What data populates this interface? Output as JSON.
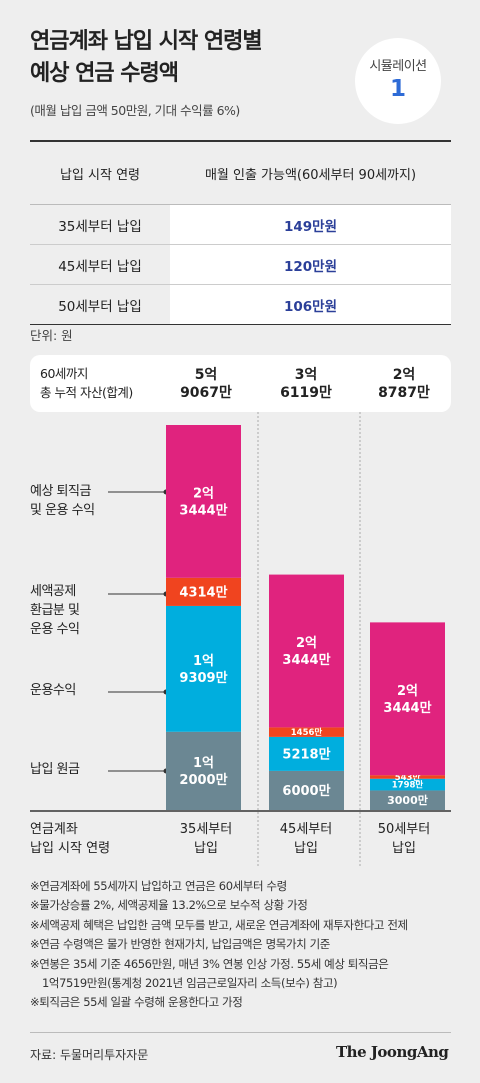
{
  "header": {
    "title_line1": "연금계좌 납입 시작 연령별",
    "title_line2": "예상 연금 수령액",
    "subtitle": "(매월 납입 금액 50만원, 기대 수익률 6%)",
    "badge_label": "시뮬레이션",
    "badge_number": "1"
  },
  "table": {
    "head_col1": "납입 시작 연령",
    "head_col2": "매월 인출 가능액(60세부터 90세까지)",
    "rows": [
      {
        "age": "35세부터 납입",
        "amount": "149만원"
      },
      {
        "age": "45세부터 납입",
        "amount": "120만원"
      },
      {
        "age": "50세부터 납입",
        "amount": "106만원"
      }
    ]
  },
  "unit_label": "단위: 원",
  "totals": {
    "label_line1": "60세까지",
    "label_line2": "총 누적 자산(합계)",
    "values": [
      {
        "line1": "5억",
        "line2": "9067만"
      },
      {
        "line1": "3억",
        "line2": "6119만"
      },
      {
        "line1": "2억",
        "line2": "8787만"
      }
    ]
  },
  "side_labels": {
    "retire_line1": "예상 퇴직금",
    "retire_line2": "및 운용 수익",
    "tax_line1": "세액공제",
    "tax_line2": "환급분 및",
    "tax_line3": "운용 수익",
    "invest": "운용수익",
    "principal": "납입 원금"
  },
  "bottom": {
    "title_line1": "연금계좌",
    "title_line2": "납입 시작 연령"
  },
  "chart_data": {
    "type": "bar",
    "stacked": true,
    "categories": [
      "35세부터 납입",
      "45세부터 납입",
      "50세부터 납입"
    ],
    "category_lines": [
      [
        "35세부터",
        "납입"
      ],
      [
        "45세부터",
        "납입"
      ],
      [
        "50세부터",
        "납입"
      ]
    ],
    "unit": "만원",
    "series": [
      {
        "name": "납입 원금",
        "color": "#6b8793",
        "values": [
          12000,
          6000,
          3000
        ],
        "labels": [
          [
            "1억",
            "2000만"
          ],
          [
            "6000만"
          ],
          [
            "3000만"
          ]
        ]
      },
      {
        "name": "운용수익",
        "color": "#00aede",
        "values": [
          19309,
          5218,
          1798
        ],
        "labels": [
          [
            "1억",
            "9309만"
          ],
          [
            "5218만"
          ],
          [
            "1798만"
          ]
        ]
      },
      {
        "name": "세액공제 환급분 및 운용 수익",
        "color": "#f0441f",
        "values": [
          4314,
          1456,
          543
        ],
        "labels": [
          [
            "4314만"
          ],
          [
            "1456만"
          ],
          [
            "543만"
          ]
        ]
      },
      {
        "name": "예상 퇴직금 및 운용 수익",
        "color": "#e0237e",
        "values": [
          23444,
          23444,
          23444
        ],
        "labels": [
          [
            "2억",
            "3444만"
          ],
          [
            "2억",
            "3444만"
          ],
          [
            "2억",
            "3444만"
          ]
        ]
      }
    ],
    "totals": [
      59067,
      36119,
      28787
    ]
  },
  "notes": [
    "※연금계좌에 55세까지 납입하고 연금은 60세부터 수령",
    "※물가상승률 2%, 세액공제율 13.2%으로 보수적 상황 가정",
    "※세액공제 혜택은 납입한 금액 모두를 받고, 새로운 연금계좌에 재투자한다고 전제",
    "※연금 수령액은 물가 반영한 현재가치, 납입금액은 명목가치 기준",
    "※연봉은 35세 기준 4656만원, 매년 3% 연봉 인상 가정. 55세 예상 퇴직금은",
    "1억7519만원(통계청 2021년 임금근로일자리 소득(보수) 참고)",
    "※퇴직금은 55세 일괄 수령해 운용한다고 가정"
  ],
  "footer": {
    "source": "자료: 두물머리투자자문",
    "logo": "The JoongAng"
  }
}
